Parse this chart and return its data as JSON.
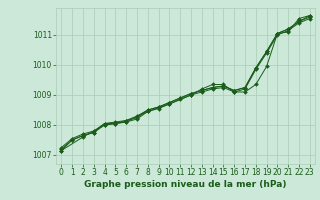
{
  "bg_color": "#cce8d8",
  "grid_color": "#aaccb8",
  "line_color": "#1a5c1a",
  "xlabel": "Graphe pression niveau de la mer (hPa)",
  "xlim": [
    -0.5,
    23.5
  ],
  "ylim": [
    1006.7,
    1011.9
  ],
  "yticks": [
    1007,
    1008,
    1009,
    1010,
    1011
  ],
  "xticks": [
    0,
    1,
    2,
    3,
    4,
    5,
    6,
    7,
    8,
    9,
    10,
    11,
    12,
    13,
    14,
    15,
    16,
    17,
    18,
    19,
    20,
    21,
    22,
    23
  ],
  "series1_x": [
    0,
    1,
    2,
    3,
    4,
    5,
    6,
    7,
    8,
    9,
    10,
    11,
    12,
    13,
    14,
    15,
    16,
    17,
    18,
    19,
    20,
    21,
    22,
    23
  ],
  "series1_y": [
    1007.15,
    1007.5,
    1007.65,
    1007.75,
    1008.0,
    1008.05,
    1008.1,
    1008.2,
    1008.45,
    1008.55,
    1008.7,
    1008.85,
    1009.0,
    1009.1,
    1009.2,
    1009.25,
    1009.1,
    1009.2,
    1009.85,
    1010.4,
    1011.0,
    1011.15,
    1011.4,
    1011.55
  ],
  "series2_x": [
    0,
    1,
    2,
    3,
    4,
    5,
    6,
    7,
    8,
    9,
    10,
    11,
    12,
    13,
    14,
    15,
    16,
    17,
    18,
    19,
    20,
    21,
    22,
    23
  ],
  "series2_y": [
    1007.2,
    1007.5,
    1007.65,
    1007.75,
    1008.05,
    1008.05,
    1008.15,
    1008.3,
    1008.5,
    1008.6,
    1008.75,
    1008.9,
    1009.05,
    1009.15,
    1009.25,
    1009.3,
    1009.15,
    1009.25,
    1009.9,
    1010.45,
    1011.05,
    1011.2,
    1011.45,
    1011.6
  ],
  "series3_x": [
    0,
    1,
    2,
    3,
    4,
    5,
    6,
    7,
    8,
    9,
    10,
    11,
    12,
    13,
    14,
    15,
    16,
    17,
    18,
    19,
    20,
    21,
    22,
    23
  ],
  "series3_y": [
    1007.25,
    1007.55,
    1007.7,
    1007.8,
    1008.05,
    1008.1,
    1008.15,
    1008.25,
    1008.5,
    1008.6,
    1008.75,
    1008.9,
    1009.05,
    1009.15,
    1009.25,
    1009.3,
    1009.15,
    1009.25,
    1009.9,
    1010.45,
    1011.05,
    1011.2,
    1011.45,
    1011.65
  ],
  "series4_x": [
    0,
    2,
    4,
    6,
    8,
    10,
    12,
    13,
    14,
    15,
    16,
    17,
    18,
    19,
    20,
    21,
    22,
    23
  ],
  "series4_y": [
    1007.15,
    1007.6,
    1008.0,
    1008.1,
    1008.45,
    1008.7,
    1009.0,
    1009.2,
    1009.35,
    1009.35,
    1009.1,
    1009.1,
    1009.35,
    1009.95,
    1011.05,
    1011.1,
    1011.55,
    1011.65
  ],
  "tick_fontsize": 5.5,
  "xlabel_fontsize": 6.5
}
